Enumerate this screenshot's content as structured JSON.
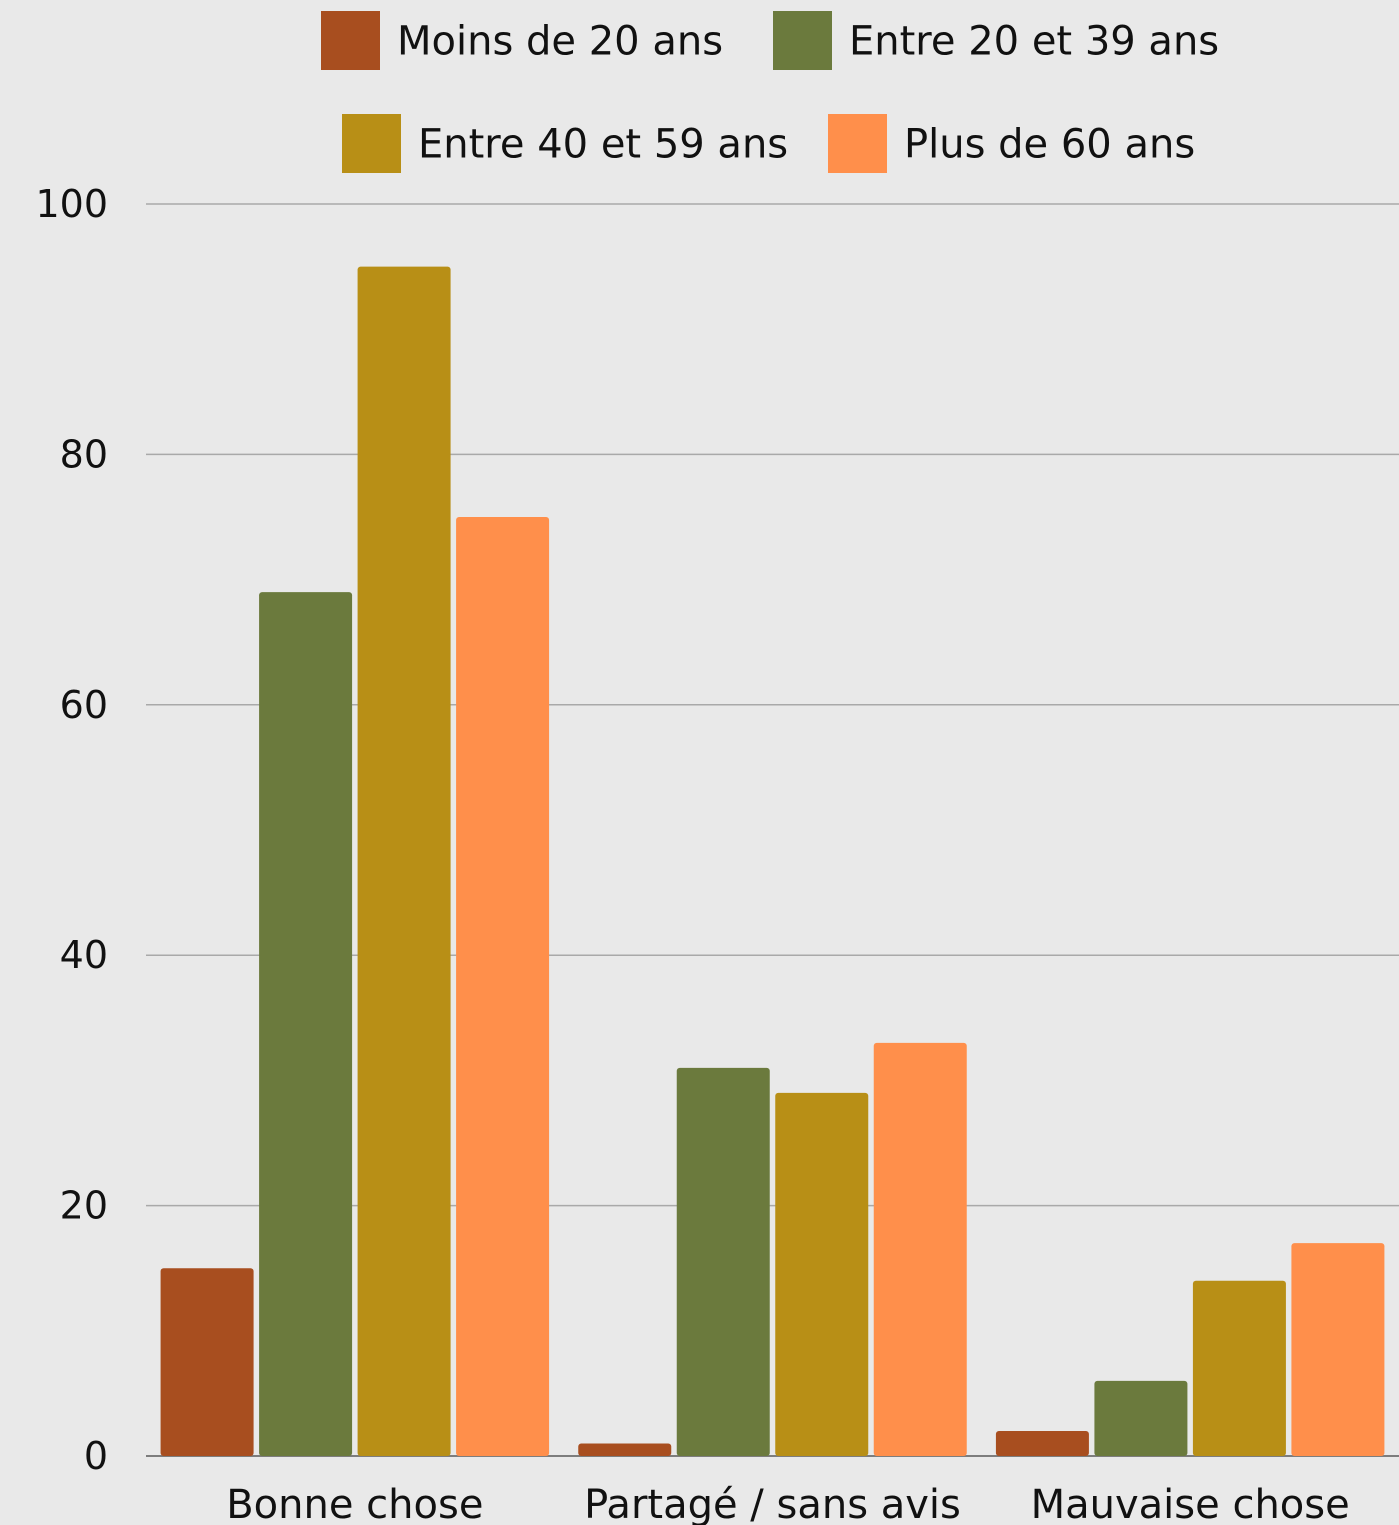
{
  "chart_data": {
    "type": "bar",
    "categories": [
      "Bonne chose",
      "Partagé / sans avis",
      "Mauvaise chose"
    ],
    "series": [
      {
        "name": "Moins de 20 ans",
        "color": "#a84e1f",
        "values": [
          15,
          1,
          2
        ]
      },
      {
        "name": "Entre 20 et 39 ans",
        "color": "#6b7a3d",
        "values": [
          69,
          31,
          6
        ]
      },
      {
        "name": "Entre 40 et 59 ans",
        "color": "#b88f16",
        "values": [
          95,
          29,
          14
        ]
      },
      {
        "name": "Plus de 60 ans",
        "color": "#ff8f4b",
        "values": [
          75,
          33,
          17
        ]
      }
    ],
    "y_ticks": [
      0,
      20,
      40,
      60,
      80,
      100
    ],
    "ylim": [
      0,
      100
    ],
    "grid": true,
    "legend_position": "top-center"
  }
}
